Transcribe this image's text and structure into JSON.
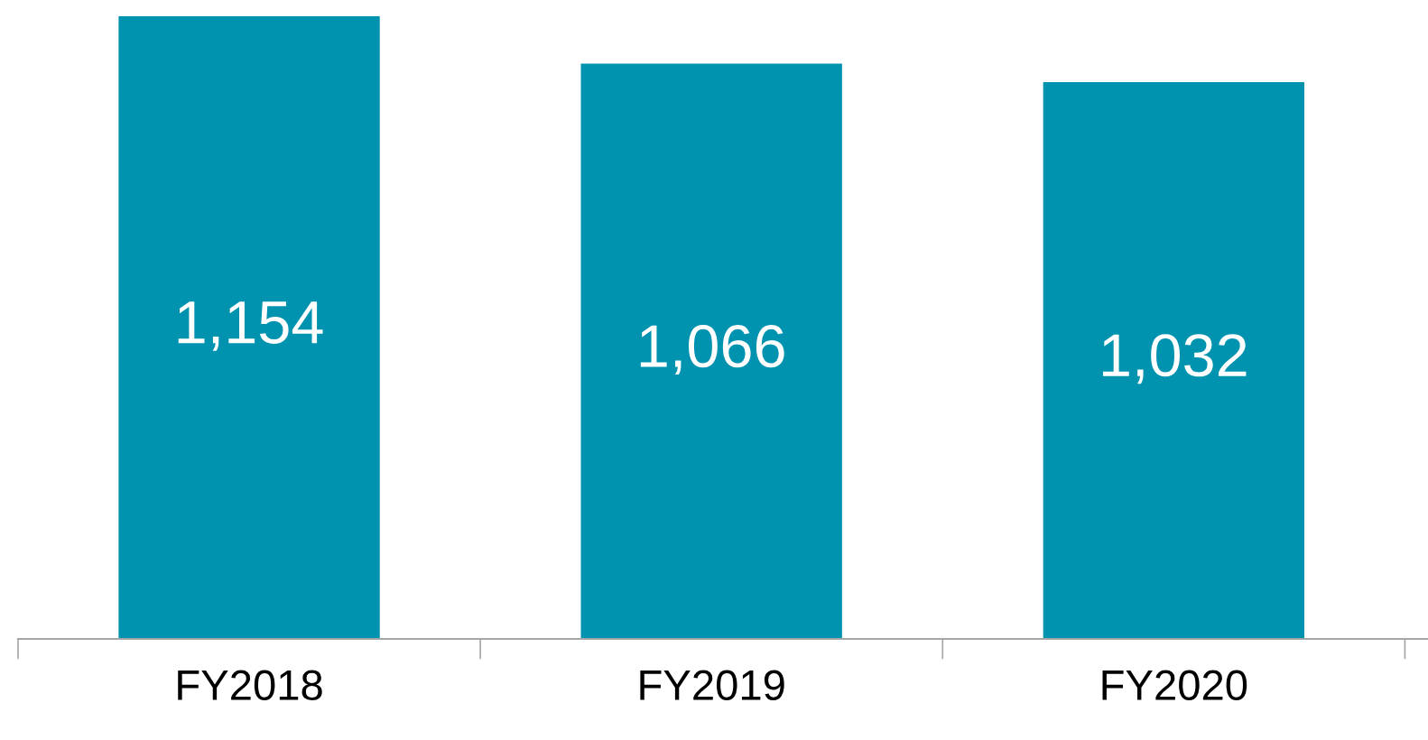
{
  "chart_data": {
    "type": "bar",
    "categories": [
      "FY2018",
      "FY2019",
      "FY2020"
    ],
    "values": [
      1154,
      1066,
      1032
    ],
    "color": "#0093b0",
    "value_labels": [
      "1,154",
      "1,066",
      "1,032"
    ],
    "grid": false,
    "legend": false
  }
}
